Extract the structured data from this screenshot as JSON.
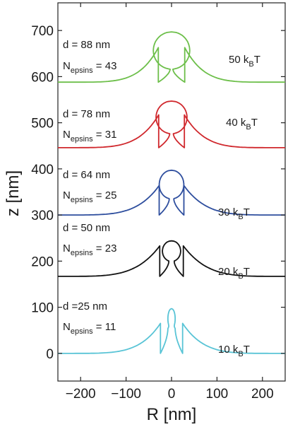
{
  "chart_data": {
    "type": "line",
    "xlabel": "R [nm]",
    "ylabel": "z [nm]",
    "xlim": [
      -250,
      250
    ],
    "ylim": [
      -60,
      760
    ],
    "xticks": [
      -200,
      -100,
      0,
      100,
      200
    ],
    "yticks": [
      0,
      100,
      200,
      300,
      400,
      500,
      600,
      700
    ],
    "xtick_labels": [
      "−200",
      "−100",
      "0",
      "100",
      "200"
    ],
    "ytick_labels": [
      "0",
      "100",
      "200",
      "300",
      "400",
      "500",
      "600",
      "700"
    ],
    "grid": false,
    "series": [
      {
        "color": "#59c4d6",
        "base": 0,
        "tip": 97,
        "neck": 8,
        "width": 8,
        "neck_frac": 0.55,
        "tail_end": 65,
        "tail_shape": 1.6,
        "d_text": "d =25 nm",
        "n_main": "N",
        "n_sub": "epsins",
        "n_value": " = 11",
        "energy_main": "10 k",
        "energy_sub": "B",
        "energy_tail": "T"
      },
      {
        "color": "#111111",
        "base": 167,
        "tip": 244,
        "neck": 6,
        "width": 20,
        "neck_frac": 0.42,
        "tail_end": 66,
        "tail_shape": 1.4,
        "d_text": "d = 50 nm",
        "n_main": "N",
        "n_sub": "epsins",
        "n_value": " = 23",
        "energy_main": "20 k",
        "energy_sub": "B",
        "energy_tail": "T"
      },
      {
        "color": "#2e4e9e",
        "base": 300,
        "tip": 397,
        "neck": 5,
        "width": 27,
        "neck_frac": 0.36,
        "tail_end": 64,
        "tail_shape": 1.5,
        "d_text": "d = 64 nm",
        "n_main": "N",
        "n_sub": "epsins",
        "n_value": " = 25",
        "energy_main": "30 k",
        "energy_sub": "B",
        "energy_tail": "T"
      },
      {
        "color": "#d0282d",
        "base": 446,
        "tip": 547,
        "neck": 4,
        "width": 34,
        "neck_frac": 0.3,
        "tail_end": 71,
        "tail_shape": 1.6,
        "d_text": "d = 78 nm",
        "n_main": "N",
        "n_sub": "epsins",
        "n_value": " = 31",
        "energy_main": "40 k",
        "energy_sub": "B",
        "energy_tail": "T"
      },
      {
        "color": "#6dbf4a",
        "base": 588,
        "tip": 697,
        "neck": 3,
        "width": 40,
        "neck_frac": 0.26,
        "tail_end": 75,
        "tail_shape": 1.7,
        "d_text": "d = 88 nm",
        "n_main": "N",
        "n_sub": "epsins",
        "n_value": " = 43",
        "energy_main": "50 k",
        "energy_sub": "B",
        "energy_tail": "T"
      }
    ]
  }
}
